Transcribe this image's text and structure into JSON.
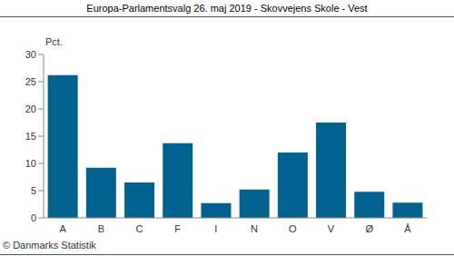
{
  "chart_data": {
    "type": "bar",
    "title": "Europa-Parlamentsvalg 26. maj 2019 - Skovvejens Skole - Vest",
    "y_label": "Pct.",
    "annotation": "© Danmarks Statistik",
    "categories": [
      "A",
      "B",
      "C",
      "F",
      "I",
      "N",
      "O",
      "V",
      "Ø",
      "Å"
    ],
    "values": [
      26.2,
      9.2,
      6.5,
      13.7,
      2.7,
      5.2,
      12.0,
      17.5,
      4.8,
      2.8
    ],
    "color": "#00628f",
    "ylim": [
      0,
      30
    ],
    "yticks": [
      0,
      5,
      10,
      15,
      20,
      25,
      30
    ],
    "grid": false
  }
}
